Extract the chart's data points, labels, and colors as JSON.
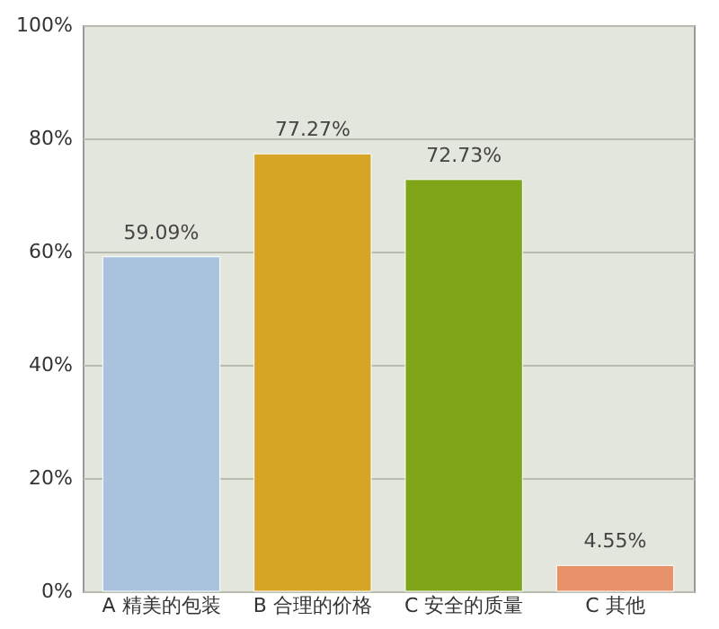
{
  "chart_data": {
    "type": "bar",
    "categories": [
      "A 精美的包装",
      "B 合理的价格",
      "C 安全的质量",
      "C 其他"
    ],
    "values": [
      59.09,
      77.27,
      72.73,
      4.55
    ],
    "colors": [
      "#a9c3de",
      "#d6a526",
      "#7fa519",
      "#e8926a"
    ],
    "value_labels": [
      "59.09%",
      "77.27%",
      "72.73%",
      "4.55%"
    ],
    "ylim": [
      0,
      100
    ],
    "yticks": [
      {
        "value": 0,
        "label": "0%"
      },
      {
        "value": 20,
        "label": "20%"
      },
      {
        "value": 40,
        "label": "40%"
      },
      {
        "value": 60,
        "label": "60%"
      },
      {
        "value": 80,
        "label": "80%"
      },
      {
        "value": 100,
        "label": "100%"
      }
    ],
    "grid": "y"
  }
}
